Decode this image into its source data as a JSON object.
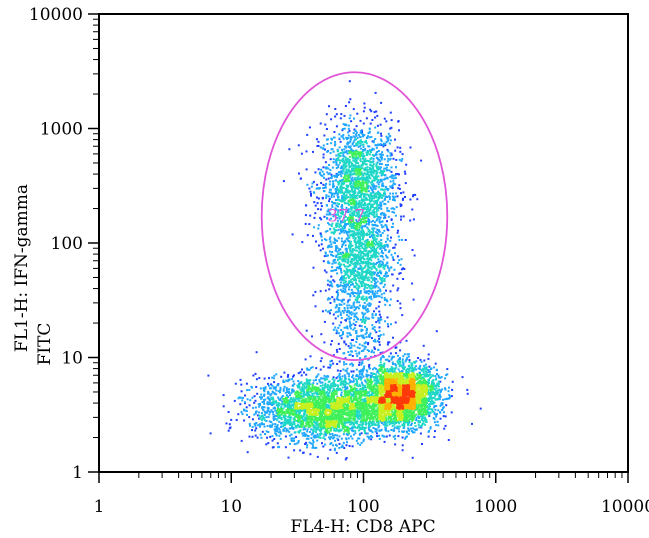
{
  "chart_data": {
    "type": "scatter",
    "subtype": "flow-cytometry density dot plot",
    "xlabel": "FL4-H: CD8 APC",
    "ylabel_line1": "FL1-H: IFN-gamma",
    "ylabel_line2": "FITC",
    "xscale": "log",
    "yscale": "log",
    "xlim": [
      1,
      10000
    ],
    "ylim": [
      1,
      10000
    ],
    "x_ticks": [
      {
        "value": 1,
        "label": "1"
      },
      {
        "value": 10,
        "label": "10"
      },
      {
        "value": 100,
        "label": "100"
      },
      {
        "value": 1000,
        "label": "1000"
      },
      {
        "value": 10000,
        "label": "10000"
      }
    ],
    "y_ticks": [
      {
        "value": 1,
        "label": "1"
      },
      {
        "value": 10,
        "label": "10"
      },
      {
        "value": 100,
        "label": "100"
      },
      {
        "value": 1000,
        "label": "1000"
      },
      {
        "value": 10000,
        "label": "10000"
      }
    ],
    "grid": false,
    "gate": {
      "shape": "ellipse",
      "color": "#e255d8",
      "label": "37.7",
      "center": {
        "x": 85,
        "y": 170
      },
      "x_extent": [
        17,
        430
      ],
      "y_extent": [
        9.5,
        3100
      ]
    },
    "populations": [
      {
        "name": "",
        "center": {
          "x": 90,
          "y": 320
        },
        "spread_log10": {
          "x": 0.15,
          "y": 0.28
        },
        "relative_size": 0.2
      },
      {
        "name": "",
        "center": {
          "x": 92,
          "y": 75
        },
        "spread_log10": {
          "x": 0.12,
          "y": 0.22
        },
        "relative_size": 0.1
      },
      {
        "name": "",
        "center": {
          "x": 90,
          "y": 20
        },
        "spread_log10": {
          "x": 0.14,
          "y": 0.35
        },
        "relative_size": 0.06
      },
      {
        "name": "",
        "center": {
          "x": 190,
          "y": 4.8
        },
        "spread_log10": {
          "x": 0.14,
          "y": 0.13
        },
        "relative_size": 0.32
      },
      {
        "name": "",
        "center": {
          "x": 50,
          "y": 3.6
        },
        "spread_log10": {
          "x": 0.26,
          "y": 0.14
        },
        "relative_size": 0.32
      }
    ],
    "density_colors": [
      "#1f3fff",
      "#1fa7ff",
      "#1fd7c7",
      "#3ff05a",
      "#c8f020",
      "#ffb000",
      "#ff3a0a"
    ]
  }
}
